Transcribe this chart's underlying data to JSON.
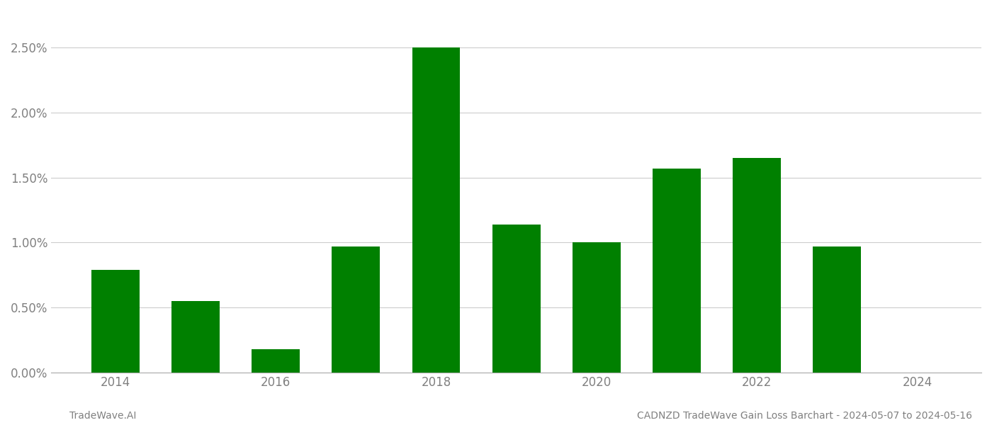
{
  "years": [
    2014,
    2015,
    2016,
    2017,
    2018,
    2019,
    2020,
    2021,
    2022,
    2023
  ],
  "values": [
    0.0079,
    0.0055,
    0.0018,
    0.0097,
    0.025,
    0.0114,
    0.01,
    0.0157,
    0.0165,
    0.0097
  ],
  "bar_color": "#008000",
  "background_color": "#ffffff",
  "grid_color": "#cccccc",
  "tick_color": "#808080",
  "ylim_max": 0.0275,
  "yticks": [
    0.0,
    0.005,
    0.01,
    0.015,
    0.02,
    0.025
  ],
  "ytick_labels": [
    "0.00%",
    "0.50%",
    "1.00%",
    "1.50%",
    "2.00%",
    "2.50%"
  ],
  "xtick_labels": [
    "2014",
    "2016",
    "2018",
    "2020",
    "2022",
    "2024"
  ],
  "xtick_positions": [
    2014,
    2016,
    2018,
    2020,
    2022,
    2024
  ],
  "xlim": [
    2013.2,
    2024.8
  ],
  "footer_left": "TradeWave.AI",
  "footer_right": "CADNZD TradeWave Gain Loss Barchart - 2024-05-07 to 2024-05-16",
  "footer_color": "#808080",
  "footer_fontsize": 10,
  "bar_width": 0.6,
  "tick_fontsize": 12
}
